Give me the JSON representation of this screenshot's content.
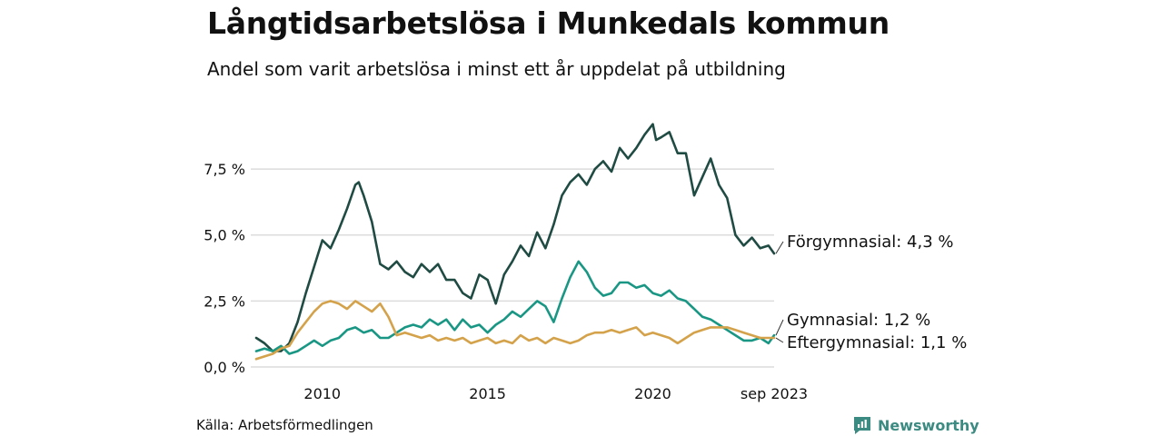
{
  "chart_data": {
    "type": "line",
    "title": "Långtidsarbetslösa i Munkedals kommun",
    "subtitle": "Andel som varit arbetslösa i minst ett år uppdelat på utbildning",
    "ylim": [
      0,
      9.5
    ],
    "y_ticks": [
      0,
      2.5,
      5,
      7.5
    ],
    "y_tick_labels": [
      "0,0 %",
      "2,5 %",
      "5,0 %",
      "7,5 %"
    ],
    "x_range": [
      2008.0,
      2023.67
    ],
    "x_ticks": [
      2010,
      2015,
      2020,
      2023.67
    ],
    "x_tick_labels": [
      "2010",
      "2015",
      "2020",
      "sep 2023"
    ],
    "grid": true,
    "series": [
      {
        "name": "Förgymnasial",
        "label": "Förgymnasial: 4,3 %",
        "color": "#1f4b43",
        "x": [
          2008.0,
          2008.25,
          2008.5,
          2008.75,
          2009.0,
          2009.25,
          2009.5,
          2009.75,
          2010.0,
          2010.25,
          2010.5,
          2010.75,
          2011.0,
          2011.1,
          2011.25,
          2011.5,
          2011.75,
          2012.0,
          2012.25,
          2012.5,
          2012.75,
          2013.0,
          2013.25,
          2013.5,
          2013.75,
          2014.0,
          2014.25,
          2014.5,
          2014.75,
          2015.0,
          2015.25,
          2015.5,
          2015.75,
          2016.0,
          2016.25,
          2016.5,
          2016.75,
          2017.0,
          2017.25,
          2017.5,
          2017.75,
          2018.0,
          2018.25,
          2018.5,
          2018.75,
          2019.0,
          2019.25,
          2019.5,
          2019.75,
          2020.0,
          2020.1,
          2020.25,
          2020.5,
          2020.75,
          2021.0,
          2021.25,
          2021.5,
          2021.75,
          2022.0,
          2022.25,
          2022.5,
          2022.75,
          2023.0,
          2023.25,
          2023.5,
          2023.67
        ],
        "values": [
          1.1,
          0.9,
          0.6,
          0.6,
          0.9,
          1.7,
          2.8,
          3.8,
          4.8,
          4.5,
          5.2,
          6.0,
          6.9,
          7.0,
          6.5,
          5.5,
          3.9,
          3.7,
          4.0,
          3.6,
          3.4,
          3.9,
          3.6,
          3.9,
          3.3,
          3.3,
          2.8,
          2.6,
          3.5,
          3.3,
          2.4,
          3.5,
          4.0,
          4.6,
          4.2,
          5.1,
          4.5,
          5.4,
          6.5,
          7.0,
          7.3,
          6.9,
          7.5,
          7.8,
          7.4,
          8.3,
          7.9,
          8.3,
          8.8,
          9.2,
          8.6,
          8.7,
          8.9,
          8.1,
          8.1,
          6.5,
          7.2,
          7.9,
          6.9,
          6.4,
          5.0,
          4.6,
          4.9,
          4.5,
          4.6,
          4.3
        ]
      },
      {
        "name": "Gymnasial",
        "label": "Gymnasial: 1,2 %",
        "color": "#1a9784",
        "x": [
          2008.0,
          2008.25,
          2008.5,
          2008.75,
          2009.0,
          2009.25,
          2009.5,
          2009.75,
          2010.0,
          2010.25,
          2010.5,
          2010.75,
          2011.0,
          2011.25,
          2011.5,
          2011.75,
          2012.0,
          2012.25,
          2012.5,
          2012.75,
          2013.0,
          2013.25,
          2013.5,
          2013.75,
          2014.0,
          2014.25,
          2014.5,
          2014.75,
          2015.0,
          2015.25,
          2015.5,
          2015.75,
          2016.0,
          2016.25,
          2016.5,
          2016.75,
          2017.0,
          2017.25,
          2017.5,
          2017.75,
          2018.0,
          2018.25,
          2018.5,
          2018.75,
          2019.0,
          2019.25,
          2019.5,
          2019.75,
          2020.0,
          2020.25,
          2020.5,
          2020.75,
          2021.0,
          2021.25,
          2021.5,
          2021.75,
          2022.0,
          2022.25,
          2022.5,
          2022.75,
          2023.0,
          2023.25,
          2023.5,
          2023.67
        ],
        "values": [
          0.6,
          0.7,
          0.6,
          0.8,
          0.5,
          0.6,
          0.8,
          1.0,
          0.8,
          1.0,
          1.1,
          1.4,
          1.5,
          1.3,
          1.4,
          1.1,
          1.1,
          1.3,
          1.5,
          1.6,
          1.5,
          1.8,
          1.6,
          1.8,
          1.4,
          1.8,
          1.5,
          1.6,
          1.3,
          1.6,
          1.8,
          2.1,
          1.9,
          2.2,
          2.5,
          2.3,
          1.7,
          2.6,
          3.4,
          4.0,
          3.6,
          3.0,
          2.7,
          2.8,
          3.2,
          3.2,
          3.0,
          3.1,
          2.8,
          2.7,
          2.9,
          2.6,
          2.5,
          2.2,
          1.9,
          1.8,
          1.6,
          1.4,
          1.2,
          1.0,
          1.0,
          1.1,
          0.9,
          1.2
        ]
      },
      {
        "name": "Eftergymnasial",
        "label": "Eftergymnasial: 1,1 %",
        "color": "#d4a24b",
        "x": [
          2008.0,
          2008.25,
          2008.5,
          2008.75,
          2009.0,
          2009.25,
          2009.5,
          2009.75,
          2010.0,
          2010.25,
          2010.5,
          2010.75,
          2011.0,
          2011.25,
          2011.5,
          2011.75,
          2012.0,
          2012.25,
          2012.5,
          2012.75,
          2013.0,
          2013.25,
          2013.5,
          2013.75,
          2014.0,
          2014.25,
          2014.5,
          2014.75,
          2015.0,
          2015.25,
          2015.5,
          2015.75,
          2016.0,
          2016.25,
          2016.5,
          2016.75,
          2017.0,
          2017.25,
          2017.5,
          2017.75,
          2018.0,
          2018.25,
          2018.5,
          2018.75,
          2019.0,
          2019.25,
          2019.5,
          2019.75,
          2020.0,
          2020.25,
          2020.5,
          2020.75,
          2021.0,
          2021.25,
          2021.5,
          2021.75,
          2022.0,
          2022.25,
          2022.5,
          2022.75,
          2023.0,
          2023.25,
          2023.5,
          2023.67
        ],
        "values": [
          0.3,
          0.4,
          0.5,
          0.7,
          0.8,
          1.3,
          1.7,
          2.1,
          2.4,
          2.5,
          2.4,
          2.2,
          2.5,
          2.3,
          2.1,
          2.4,
          1.9,
          1.2,
          1.3,
          1.2,
          1.1,
          1.2,
          1.0,
          1.1,
          1.0,
          1.1,
          0.9,
          1.0,
          1.1,
          0.9,
          1.0,
          0.9,
          1.2,
          1.0,
          1.1,
          0.9,
          1.1,
          1.0,
          0.9,
          1.0,
          1.2,
          1.3,
          1.3,
          1.4,
          1.3,
          1.4,
          1.5,
          1.2,
          1.3,
          1.2,
          1.1,
          0.9,
          1.1,
          1.3,
          1.4,
          1.5,
          1.5,
          1.5,
          1.4,
          1.3,
          1.2,
          1.1,
          1.1,
          1.1
        ]
      }
    ]
  },
  "source": "Källa: Arbetsförmedlingen",
  "brand": "Newsworthy",
  "colors": {
    "grid": "#dcdcdc",
    "text": "#111111",
    "brand": "#3c8b82"
  }
}
